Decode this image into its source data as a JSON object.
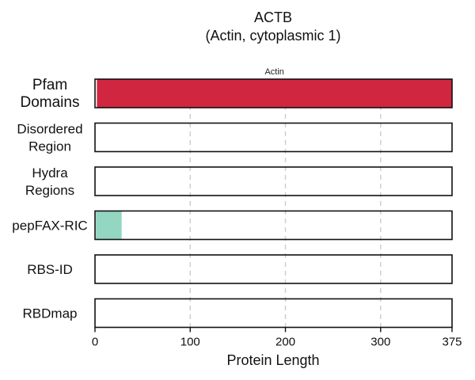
{
  "chart_data": {
    "type": "bar",
    "title": "ACTB",
    "subtitle": "(Actin, cytoplasmic 1)",
    "xlabel": "Protein Length",
    "xlim": [
      0,
      375
    ],
    "xticks": [
      0,
      100,
      200,
      300,
      375
    ],
    "grid": "vertical dashed at 100, 200, 300",
    "tracks": [
      {
        "label": "Pfam\nDomains",
        "features": [
          {
            "start": 2,
            "end": 375,
            "label": "Actin",
            "color": "#d12640"
          }
        ]
      },
      {
        "label": "Disordered\nRegion",
        "features": []
      },
      {
        "label": "Hydra\nRegions",
        "features": []
      },
      {
        "label": "pepFAX-RIC",
        "features": [
          {
            "start": 1,
            "end": 28,
            "label": "",
            "color": "#93d6c1"
          }
        ]
      },
      {
        "label": "RBS-ID",
        "features": []
      },
      {
        "label": "RBDmap",
        "features": []
      }
    ]
  }
}
